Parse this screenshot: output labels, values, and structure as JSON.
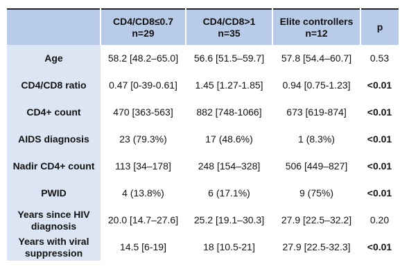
{
  "table": {
    "header": [
      "",
      "CD4/CD8≤0.7\nn=29",
      "CD4/CD8>1\nn=35",
      "Elite controllers\nn=12",
      "p"
    ],
    "rows": [
      {
        "label": "Age",
        "cells": [
          "58.2 [48.2–65.0]",
          "56.6 [51.5–59.7]",
          "57.8 [54.4–60.7]",
          "0.53"
        ],
        "p_bold": false
      },
      {
        "label": "CD4/CD8 ratio",
        "cells": [
          "0.47 [0-39-0.61]",
          "1.45 [1.27-1.85]",
          "0.94 [0.75-1.23]",
          "<0.01"
        ],
        "p_bold": true
      },
      {
        "label": "CD4+ count",
        "cells": [
          "470 [363-563]",
          "882 [748-1066]",
          "673 [619-874]",
          "<0.01"
        ],
        "p_bold": true
      },
      {
        "label": "AIDS diagnosis",
        "cells": [
          "23 (79.3%)",
          "17 (48.6%)",
          "1 (8.3%)",
          "<0.01"
        ],
        "p_bold": true
      },
      {
        "label": "Nadir CD4+ count",
        "cells": [
          "113 [34–178]",
          "248 [154–328]",
          "506 [449–827]",
          "<0.01"
        ],
        "p_bold": true
      },
      {
        "label": "PWID",
        "cells": [
          "4 (13.8%)",
          "6 (17.1%)",
          "9 (75%)",
          "<0.01"
        ],
        "p_bold": true
      },
      {
        "label": "Years since HIV diagnosis",
        "cells": [
          "20.0 [14.7–27.6]",
          "25.2 [19.1–30.3]",
          "27.9 [22.5–32.2]",
          "0.20"
        ],
        "p_bold": false
      },
      {
        "label": "Years with viral suppression",
        "cells": [
          "14.5 [6-19]",
          "18 [10.5-21]",
          "27.9 [22.5-32.3]",
          "<0.01"
        ],
        "p_bold": true
      }
    ]
  }
}
